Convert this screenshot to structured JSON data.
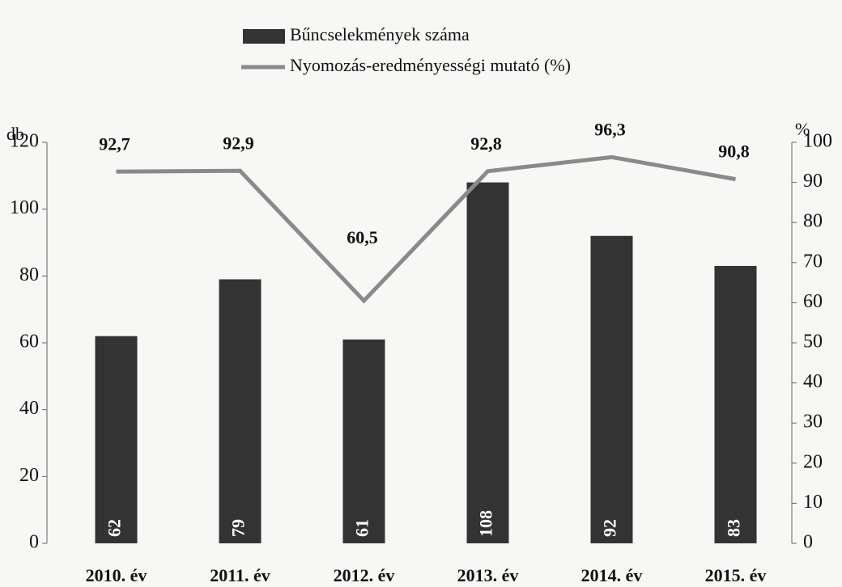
{
  "chart_data": {
    "type": "bar",
    "categories": [
      "2010. év",
      "2011. év",
      "2012. év",
      "2013. év",
      "2014. év",
      "2015. év"
    ],
    "ylabel": "db",
    "y2label": "%",
    "ylim": [
      0,
      120
    ],
    "yticks": [
      0,
      20,
      40,
      60,
      80,
      100,
      120
    ],
    "y2lim": [
      0,
      100
    ],
    "y2ticks": [
      0,
      10,
      20,
      30,
      40,
      50,
      60,
      70,
      80,
      90,
      100
    ],
    "series": [
      {
        "name": "Bűncselekmények száma",
        "type": "bar",
        "color": "#333333",
        "values": [
          62,
          79,
          61,
          108,
          92,
          83
        ]
      },
      {
        "name": "Nyomozás-eredményességi mutató (%)",
        "type": "line",
        "axis": "y2",
        "color": "#8a8a8a",
        "values": [
          92.7,
          92.9,
          60.5,
          92.8,
          96.3,
          90.8
        ],
        "value_labels": [
          "92,7",
          "92,9",
          "60,5",
          "92,8",
          "96,3",
          "90,8"
        ]
      }
    ]
  }
}
